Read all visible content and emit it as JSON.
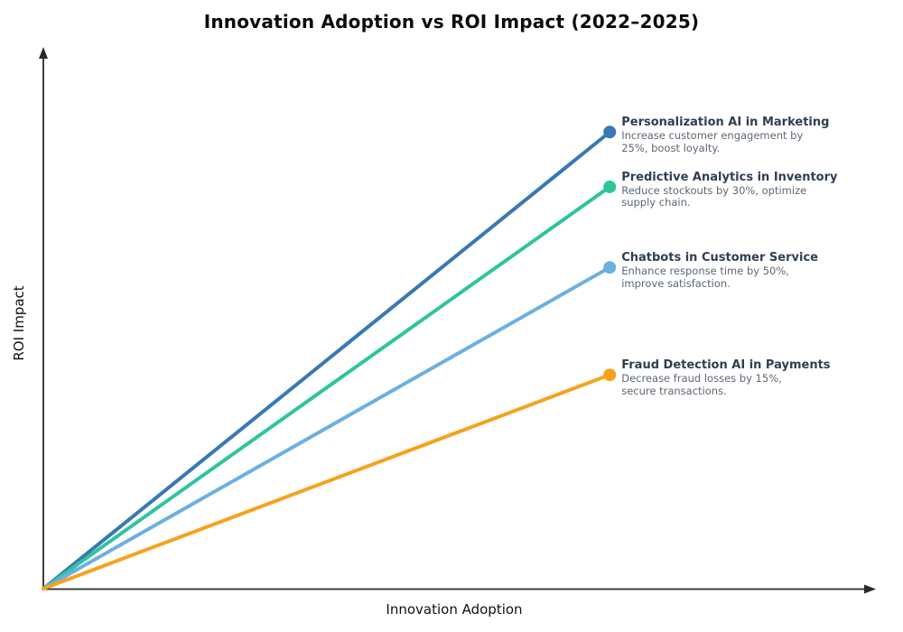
{
  "chart_data": {
    "type": "line",
    "title": "Innovation Adoption vs ROI Impact (2022–2025)",
    "xlabel": "Innovation Adoption",
    "ylabel": "ROI Impact",
    "x_range": [
      0,
      1
    ],
    "y_range": [
      0,
      1
    ],
    "grid": false,
    "axis_ticks": "none",
    "axis_arrows": true,
    "axis_color": "#2a2a2a",
    "legend_position": "inline-annotations",
    "series": [
      {
        "name": "Personalization AI in Marketing",
        "description_lines": [
          "Increase customer engagement by",
          "25%, boost loyalty."
        ],
        "color": "#3878b4",
        "x": [
          0,
          0.684
        ],
        "y": [
          0,
          0.85
        ]
      },
      {
        "name": "Predictive Analytics in Inventory",
        "description_lines": [
          "Reduce stockouts by 30%, optimize",
          "supply chain."
        ],
        "color": "#2ec49e",
        "x": [
          0,
          0.684
        ],
        "y": [
          0,
          0.748
        ]
      },
      {
        "name": "Chatbots in Customer Service",
        "description_lines": [
          "Enhance response time by 50%,",
          "improve satisfaction."
        ],
        "color": "#6cb0e2",
        "x": [
          0,
          0.684
        ],
        "y": [
          0,
          0.598
        ]
      },
      {
        "name": "Fraud Detection AI in Payments",
        "description_lines": [
          "Decrease fraud losses by 15%,",
          "secure transactions."
        ],
        "color": "#f6a21c",
        "x": [
          0,
          0.684
        ],
        "y": [
          0,
          0.398
        ]
      }
    ]
  }
}
